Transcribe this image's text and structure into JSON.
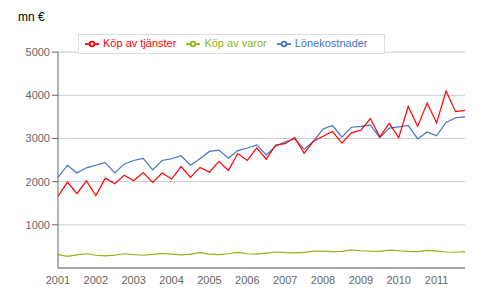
{
  "chart_data": {
    "type": "line",
    "ylabel": "mn €",
    "categories": [
      "2001",
      null,
      null,
      null,
      "2002",
      null,
      null,
      null,
      "2003",
      null,
      null,
      null,
      "2004",
      null,
      null,
      null,
      "2005",
      null,
      null,
      null,
      "2006",
      null,
      null,
      null,
      "2007",
      null,
      null,
      null,
      "2008",
      null,
      null,
      null,
      "2009",
      null,
      null,
      null,
      "2010",
      null,
      null,
      null,
      "2011",
      null,
      null,
      null
    ],
    "ylim": [
      0,
      5000
    ],
    "yticks": [
      1000,
      2000,
      3000,
      4000,
      5000
    ],
    "grid": true,
    "legend": "upper left",
    "series": [
      {
        "name": "Lönekostnader",
        "color": "#4472C4",
        "values": [
          2100,
          2380,
          2200,
          2320,
          2380,
          2440,
          2200,
          2410,
          2490,
          2540,
          2270,
          2490,
          2530,
          2600,
          2380,
          2530,
          2700,
          2730,
          2540,
          2720,
          2780,
          2850,
          2620,
          2820,
          2920,
          2990,
          2750,
          2930,
          3220,
          3300,
          3030,
          3260,
          3280,
          3310,
          3020,
          3240,
          3270,
          3300,
          2990,
          3150,
          3060,
          3370,
          3480,
          3500
        ]
      },
      {
        "name": "Köp av tjänster",
        "color": "#FF0000",
        "values": [
          1660,
          1990,
          1720,
          2020,
          1680,
          2080,
          1950,
          2150,
          2020,
          2210,
          1980,
          2200,
          2060,
          2350,
          2100,
          2330,
          2220,
          2470,
          2260,
          2650,
          2490,
          2780,
          2520,
          2850,
          2880,
          3020,
          2660,
          2940,
          3050,
          3160,
          2890,
          3130,
          3190,
          3460,
          3040,
          3350,
          3020,
          3740,
          3280,
          3820,
          3360,
          4100,
          3620,
          3650
        ]
      },
      {
        "name": "Köp av varor",
        "color": "#8DB418",
        "values": [
          310,
          270,
          305,
          330,
          295,
          280,
          300,
          330,
          310,
          295,
          315,
          340,
          320,
          305,
          320,
          355,
          320,
          310,
          330,
          360,
          330,
          320,
          345,
          370,
          355,
          350,
          360,
          390,
          390,
          380,
          385,
          420,
          400,
          390,
          385,
          415,
          400,
          385,
          380,
          410,
          390,
          370,
          365,
          380
        ]
      }
    ]
  }
}
